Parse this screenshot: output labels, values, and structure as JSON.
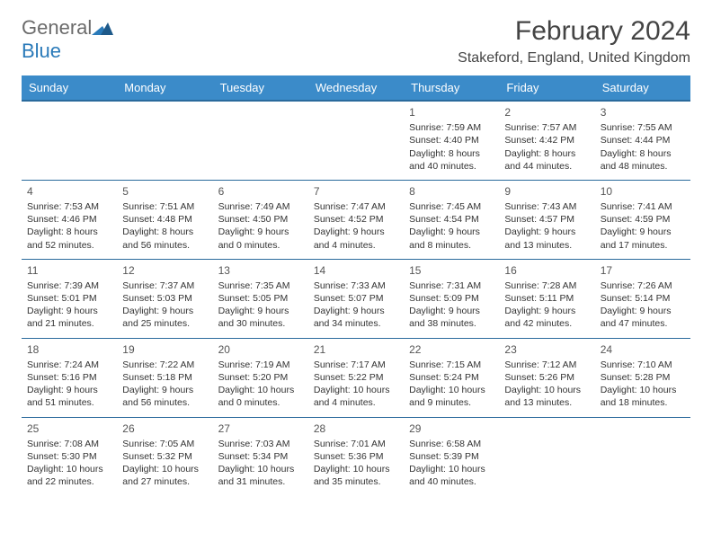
{
  "logo": {
    "part1": "General",
    "part2": "Blue"
  },
  "title": "February 2024",
  "location": "Stakeford, England, United Kingdom",
  "colors": {
    "header_bg": "#3b8bc9",
    "header_border": "#2a6a9c",
    "text": "#333333",
    "logo_gray": "#6b6b6b",
    "logo_blue": "#2a7ab9"
  },
  "day_headers": [
    "Sunday",
    "Monday",
    "Tuesday",
    "Wednesday",
    "Thursday",
    "Friday",
    "Saturday"
  ],
  "weeks": [
    [
      null,
      null,
      null,
      null,
      {
        "n": "1",
        "sunrise": "Sunrise: 7:59 AM",
        "sunset": "Sunset: 4:40 PM",
        "daylight1": "Daylight: 8 hours",
        "daylight2": "and 40 minutes."
      },
      {
        "n": "2",
        "sunrise": "Sunrise: 7:57 AM",
        "sunset": "Sunset: 4:42 PM",
        "daylight1": "Daylight: 8 hours",
        "daylight2": "and 44 minutes."
      },
      {
        "n": "3",
        "sunrise": "Sunrise: 7:55 AM",
        "sunset": "Sunset: 4:44 PM",
        "daylight1": "Daylight: 8 hours",
        "daylight2": "and 48 minutes."
      }
    ],
    [
      {
        "n": "4",
        "sunrise": "Sunrise: 7:53 AM",
        "sunset": "Sunset: 4:46 PM",
        "daylight1": "Daylight: 8 hours",
        "daylight2": "and 52 minutes."
      },
      {
        "n": "5",
        "sunrise": "Sunrise: 7:51 AM",
        "sunset": "Sunset: 4:48 PM",
        "daylight1": "Daylight: 8 hours",
        "daylight2": "and 56 minutes."
      },
      {
        "n": "6",
        "sunrise": "Sunrise: 7:49 AM",
        "sunset": "Sunset: 4:50 PM",
        "daylight1": "Daylight: 9 hours",
        "daylight2": "and 0 minutes."
      },
      {
        "n": "7",
        "sunrise": "Sunrise: 7:47 AM",
        "sunset": "Sunset: 4:52 PM",
        "daylight1": "Daylight: 9 hours",
        "daylight2": "and 4 minutes."
      },
      {
        "n": "8",
        "sunrise": "Sunrise: 7:45 AM",
        "sunset": "Sunset: 4:54 PM",
        "daylight1": "Daylight: 9 hours",
        "daylight2": "and 8 minutes."
      },
      {
        "n": "9",
        "sunrise": "Sunrise: 7:43 AM",
        "sunset": "Sunset: 4:57 PM",
        "daylight1": "Daylight: 9 hours",
        "daylight2": "and 13 minutes."
      },
      {
        "n": "10",
        "sunrise": "Sunrise: 7:41 AM",
        "sunset": "Sunset: 4:59 PM",
        "daylight1": "Daylight: 9 hours",
        "daylight2": "and 17 minutes."
      }
    ],
    [
      {
        "n": "11",
        "sunrise": "Sunrise: 7:39 AM",
        "sunset": "Sunset: 5:01 PM",
        "daylight1": "Daylight: 9 hours",
        "daylight2": "and 21 minutes."
      },
      {
        "n": "12",
        "sunrise": "Sunrise: 7:37 AM",
        "sunset": "Sunset: 5:03 PM",
        "daylight1": "Daylight: 9 hours",
        "daylight2": "and 25 minutes."
      },
      {
        "n": "13",
        "sunrise": "Sunrise: 7:35 AM",
        "sunset": "Sunset: 5:05 PM",
        "daylight1": "Daylight: 9 hours",
        "daylight2": "and 30 minutes."
      },
      {
        "n": "14",
        "sunrise": "Sunrise: 7:33 AM",
        "sunset": "Sunset: 5:07 PM",
        "daylight1": "Daylight: 9 hours",
        "daylight2": "and 34 minutes."
      },
      {
        "n": "15",
        "sunrise": "Sunrise: 7:31 AM",
        "sunset": "Sunset: 5:09 PM",
        "daylight1": "Daylight: 9 hours",
        "daylight2": "and 38 minutes."
      },
      {
        "n": "16",
        "sunrise": "Sunrise: 7:28 AM",
        "sunset": "Sunset: 5:11 PM",
        "daylight1": "Daylight: 9 hours",
        "daylight2": "and 42 minutes."
      },
      {
        "n": "17",
        "sunrise": "Sunrise: 7:26 AM",
        "sunset": "Sunset: 5:14 PM",
        "daylight1": "Daylight: 9 hours",
        "daylight2": "and 47 minutes."
      }
    ],
    [
      {
        "n": "18",
        "sunrise": "Sunrise: 7:24 AM",
        "sunset": "Sunset: 5:16 PM",
        "daylight1": "Daylight: 9 hours",
        "daylight2": "and 51 minutes."
      },
      {
        "n": "19",
        "sunrise": "Sunrise: 7:22 AM",
        "sunset": "Sunset: 5:18 PM",
        "daylight1": "Daylight: 9 hours",
        "daylight2": "and 56 minutes."
      },
      {
        "n": "20",
        "sunrise": "Sunrise: 7:19 AM",
        "sunset": "Sunset: 5:20 PM",
        "daylight1": "Daylight: 10 hours",
        "daylight2": "and 0 minutes."
      },
      {
        "n": "21",
        "sunrise": "Sunrise: 7:17 AM",
        "sunset": "Sunset: 5:22 PM",
        "daylight1": "Daylight: 10 hours",
        "daylight2": "and 4 minutes."
      },
      {
        "n": "22",
        "sunrise": "Sunrise: 7:15 AM",
        "sunset": "Sunset: 5:24 PM",
        "daylight1": "Daylight: 10 hours",
        "daylight2": "and 9 minutes."
      },
      {
        "n": "23",
        "sunrise": "Sunrise: 7:12 AM",
        "sunset": "Sunset: 5:26 PM",
        "daylight1": "Daylight: 10 hours",
        "daylight2": "and 13 minutes."
      },
      {
        "n": "24",
        "sunrise": "Sunrise: 7:10 AM",
        "sunset": "Sunset: 5:28 PM",
        "daylight1": "Daylight: 10 hours",
        "daylight2": "and 18 minutes."
      }
    ],
    [
      {
        "n": "25",
        "sunrise": "Sunrise: 7:08 AM",
        "sunset": "Sunset: 5:30 PM",
        "daylight1": "Daylight: 10 hours",
        "daylight2": "and 22 minutes."
      },
      {
        "n": "26",
        "sunrise": "Sunrise: 7:05 AM",
        "sunset": "Sunset: 5:32 PM",
        "daylight1": "Daylight: 10 hours",
        "daylight2": "and 27 minutes."
      },
      {
        "n": "27",
        "sunrise": "Sunrise: 7:03 AM",
        "sunset": "Sunset: 5:34 PM",
        "daylight1": "Daylight: 10 hours",
        "daylight2": "and 31 minutes."
      },
      {
        "n": "28",
        "sunrise": "Sunrise: 7:01 AM",
        "sunset": "Sunset: 5:36 PM",
        "daylight1": "Daylight: 10 hours",
        "daylight2": "and 35 minutes."
      },
      {
        "n": "29",
        "sunrise": "Sunrise: 6:58 AM",
        "sunset": "Sunset: 5:39 PM",
        "daylight1": "Daylight: 10 hours",
        "daylight2": "and 40 minutes."
      },
      null,
      null
    ]
  ]
}
